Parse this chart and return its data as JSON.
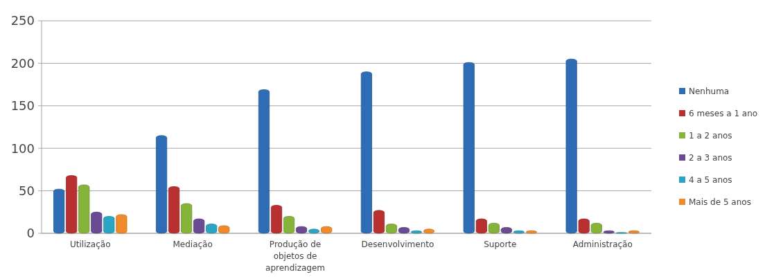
{
  "chart_data": {
    "type": "bar",
    "categories": [
      "Utilização",
      "Mediação",
      "Produção de objetos de aprendizagem",
      "Desenvolvimento",
      "Suporte",
      "Administração"
    ],
    "series": [
      {
        "name": "Nenhuma",
        "color": "#2e6db5",
        "values": [
          52,
          115,
          169,
          190,
          201,
          205
        ]
      },
      {
        "name": "6 meses a 1 ano",
        "color": "#b93030",
        "values": [
          68,
          55,
          33,
          27,
          17,
          17
        ]
      },
      {
        "name": "1 a 2 anos",
        "color": "#86b33a",
        "values": [
          57,
          35,
          20,
          11,
          12,
          12
        ]
      },
      {
        "name": "2 a 3 anos",
        "color": "#6a4a92",
        "values": [
          25,
          17,
          8,
          7,
          7,
          3
        ]
      },
      {
        "name": "4 a 5 anos",
        "color": "#2aa6c4",
        "values": [
          20,
          11,
          5,
          3,
          3,
          1
        ]
      },
      {
        "name": "Mais de 5 anos",
        "color": "#f08a2a",
        "values": [
          22,
          9,
          8,
          5,
          3,
          3
        ]
      }
    ],
    "ylim": [
      0,
      250
    ],
    "yticks": [
      0,
      50,
      100,
      150,
      200,
      250
    ],
    "grid": "y",
    "legend": "right"
  }
}
